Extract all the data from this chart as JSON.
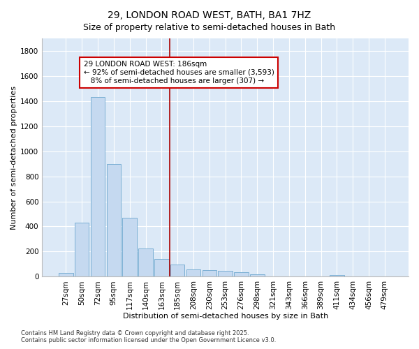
{
  "title": "29, LONDON ROAD WEST, BATH, BA1 7HZ",
  "subtitle": "Size of property relative to semi-detached houses in Bath",
  "xlabel": "Distribution of semi-detached houses by size in Bath",
  "ylabel": "Number of semi-detached properties",
  "categories": [
    "27sqm",
    "50sqm",
    "72sqm",
    "95sqm",
    "117sqm",
    "140sqm",
    "163sqm",
    "185sqm",
    "208sqm",
    "230sqm",
    "253sqm",
    "276sqm",
    "298sqm",
    "321sqm",
    "343sqm",
    "366sqm",
    "389sqm",
    "411sqm",
    "434sqm",
    "456sqm",
    "479sqm"
  ],
  "values": [
    30,
    430,
    1430,
    900,
    470,
    225,
    140,
    95,
    60,
    50,
    45,
    35,
    20,
    0,
    0,
    0,
    0,
    15,
    0,
    0,
    0
  ],
  "bar_color": "#c5d9f0",
  "bar_edge_color": "#7bafd4",
  "vline_x_index": 7,
  "vline_color": "#aa0000",
  "annotation_text": "29 LONDON ROAD WEST: 186sqm\n← 92% of semi-detached houses are smaller (3,593)\n   8% of semi-detached houses are larger (307) →",
  "annotation_box_color": "#ffffff",
  "annotation_box_edge_color": "#cc0000",
  "ylim": [
    0,
    1900
  ],
  "yticks": [
    0,
    200,
    400,
    600,
    800,
    1000,
    1200,
    1400,
    1600,
    1800
  ],
  "fig_background_color": "#ffffff",
  "plot_background_color": "#dce9f7",
  "grid_color": "#ffffff",
  "footer_line1": "Contains HM Land Registry data © Crown copyright and database right 2025.",
  "footer_line2": "Contains public sector information licensed under the Open Government Licence v3.0.",
  "title_fontsize": 10,
  "subtitle_fontsize": 9,
  "xlabel_fontsize": 8,
  "ylabel_fontsize": 8,
  "tick_fontsize": 7.5,
  "annotation_fontsize": 7.5,
  "footer_fontsize": 6
}
